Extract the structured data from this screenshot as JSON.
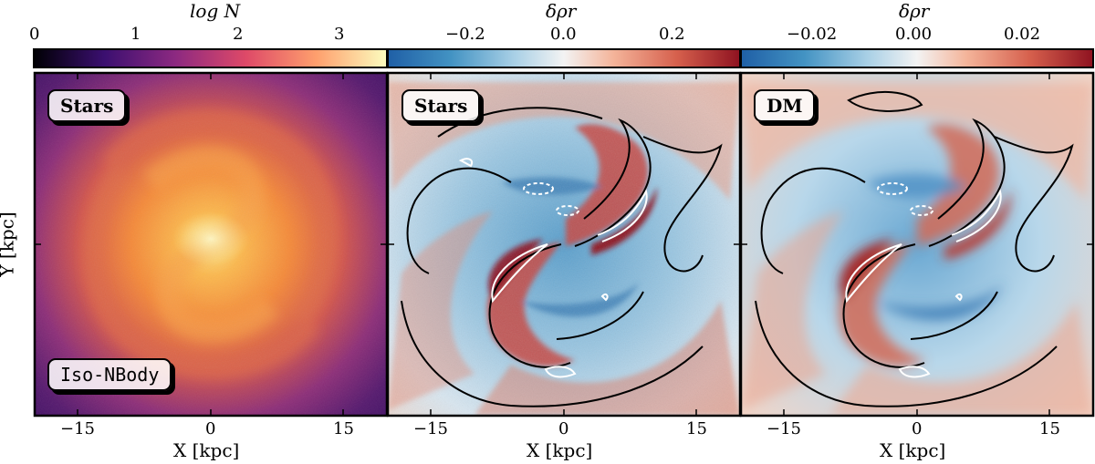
{
  "chart_data": [
    {
      "type": "heatmap",
      "panel": "stellar-number-density",
      "colorbar": {
        "label": "log N",
        "ticks": [
          "0",
          "1",
          "2",
          "3"
        ],
        "range": [
          0,
          3.4
        ],
        "colormap": "inferno",
        "stops": [
          "#000004",
          "#3b0f70",
          "#8c2981",
          "#de4968",
          "#fe9f6d",
          "#fcfdbf"
        ]
      },
      "tags": [
        "Stars",
        "Iso-NBody"
      ],
      "xlabel": "X [kpc]",
      "ylabel": "Y [kpc]",
      "xticks": [
        "−15",
        "0",
        "15"
      ],
      "xlim": [
        -20,
        20
      ],
      "ylim": [
        -20,
        20
      ]
    },
    {
      "type": "heatmap",
      "panel": "stellar-density-residual",
      "colorbar": {
        "label": "δρr",
        "ticks": [
          "−0.2",
          "0.0",
          "0.2"
        ],
        "range": [
          -0.32,
          0.32
        ],
        "colormap": "RdBu_r"
      },
      "tags": [
        "Stars"
      ],
      "xlabel": "X [kpc]",
      "xticks": [
        "−15",
        "0",
        "15"
      ],
      "xlim": [
        -20,
        20
      ],
      "ylim": [
        -20,
        20
      ]
    },
    {
      "type": "heatmap",
      "panel": "dm-density-residual",
      "colorbar": {
        "label": "δρr",
        "ticks": [
          "−0.02",
          "0.00",
          "0.02"
        ],
        "range": [
          -0.032,
          0.032
        ],
        "colormap": "RdBu_r"
      },
      "tags": [
        "DM"
      ],
      "xlabel": "X [kpc]",
      "xticks": [
        "−15",
        "0",
        "15"
      ],
      "xlim": [
        -20,
        20
      ],
      "ylim": [
        -20,
        20
      ]
    }
  ],
  "colors": {
    "diverging": [
      "#2166ac",
      "#4393c3",
      "#92c5de",
      "#f2f2f2",
      "#f4a582",
      "#d6604d",
      "#9c1a25"
    ],
    "contour_zero": "#000000",
    "contour_level": "#ffffff"
  }
}
